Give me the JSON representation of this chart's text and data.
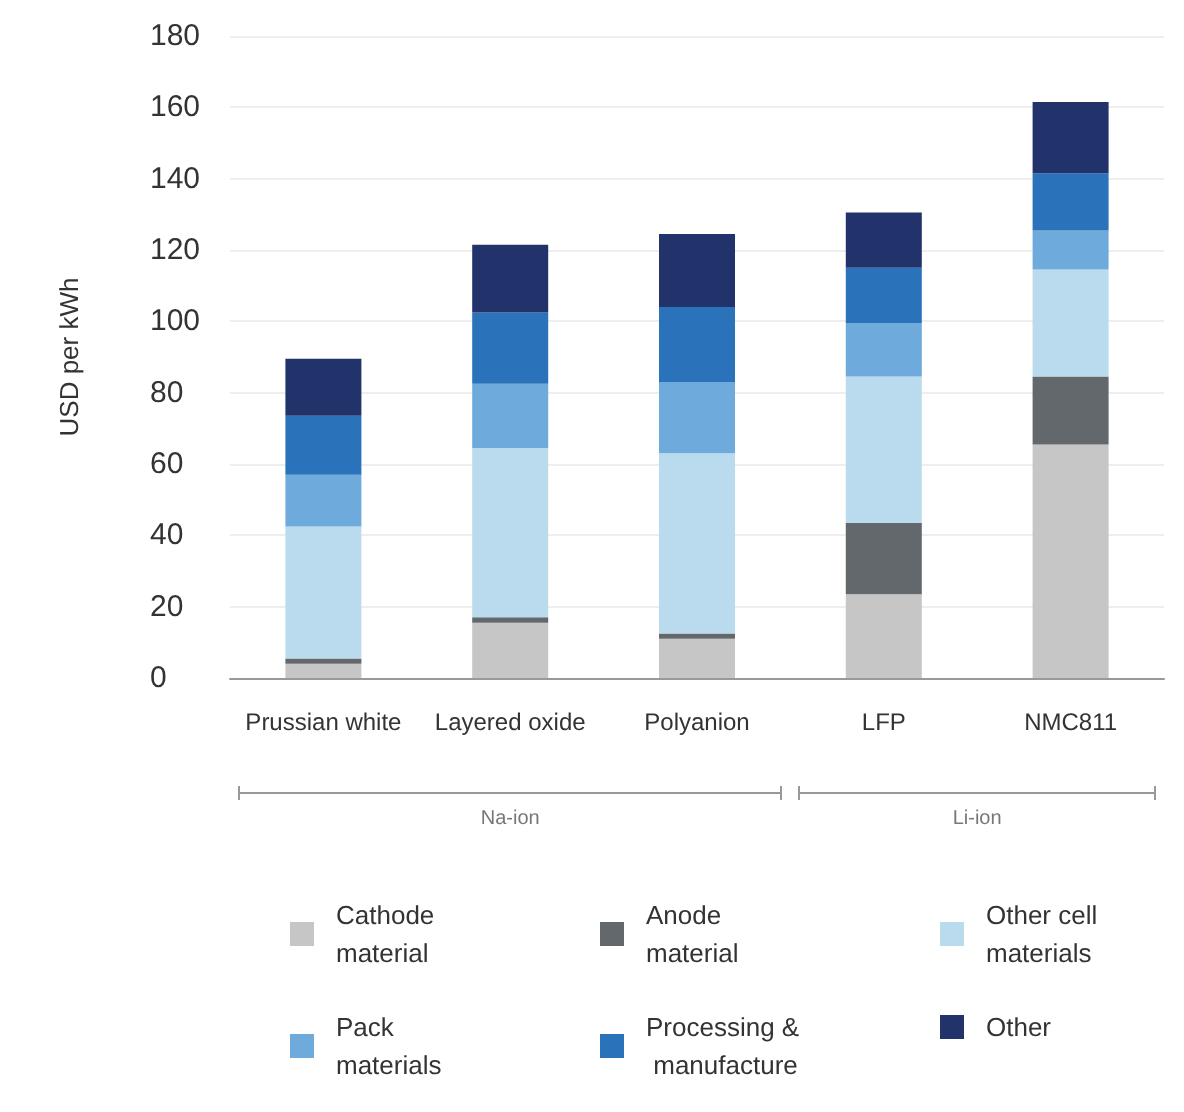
{
  "chart_data": {
    "type": "bar",
    "stacked": true,
    "ylabel": "USD per kWh",
    "categories": [
      "Prussian white",
      "Layered oxide",
      "Polyanion",
      "LFP",
      "NMC811"
    ],
    "series": [
      {
        "name": "Cathode material",
        "color": "#c6c6c6",
        "values": [
          4,
          15.5,
          11,
          23.5,
          65.5
        ]
      },
      {
        "name": "Anode material",
        "color": "#63686c",
        "values": [
          1.5,
          1.5,
          1.5,
          20,
          19
        ]
      },
      {
        "name": "Other cell materials",
        "color": "#badbed",
        "values": [
          37,
          47.5,
          50.5,
          41,
          30
        ]
      },
      {
        "name": "Pack materials",
        "color": "#6eaadc",
        "values": [
          14.5,
          18,
          20,
          15,
          11
        ]
      },
      {
        "name": "Processing & manufacture",
        "color": "#2a72ba",
        "values": [
          16.5,
          20,
          21,
          15.5,
          16
        ]
      },
      {
        "name": "Other",
        "color": "#22336b",
        "values": [
          16,
          19,
          20.5,
          15.5,
          20
        ]
      }
    ],
    "annotations": [
      "Na-ion",
      "Li-ion"
    ],
    "ylim": [
      0,
      180
    ],
    "yticks": [
      0,
      20,
      40,
      60,
      80,
      100,
      120,
      140,
      160,
      180
    ],
    "grid": "y",
    "legend": "bottom"
  }
}
